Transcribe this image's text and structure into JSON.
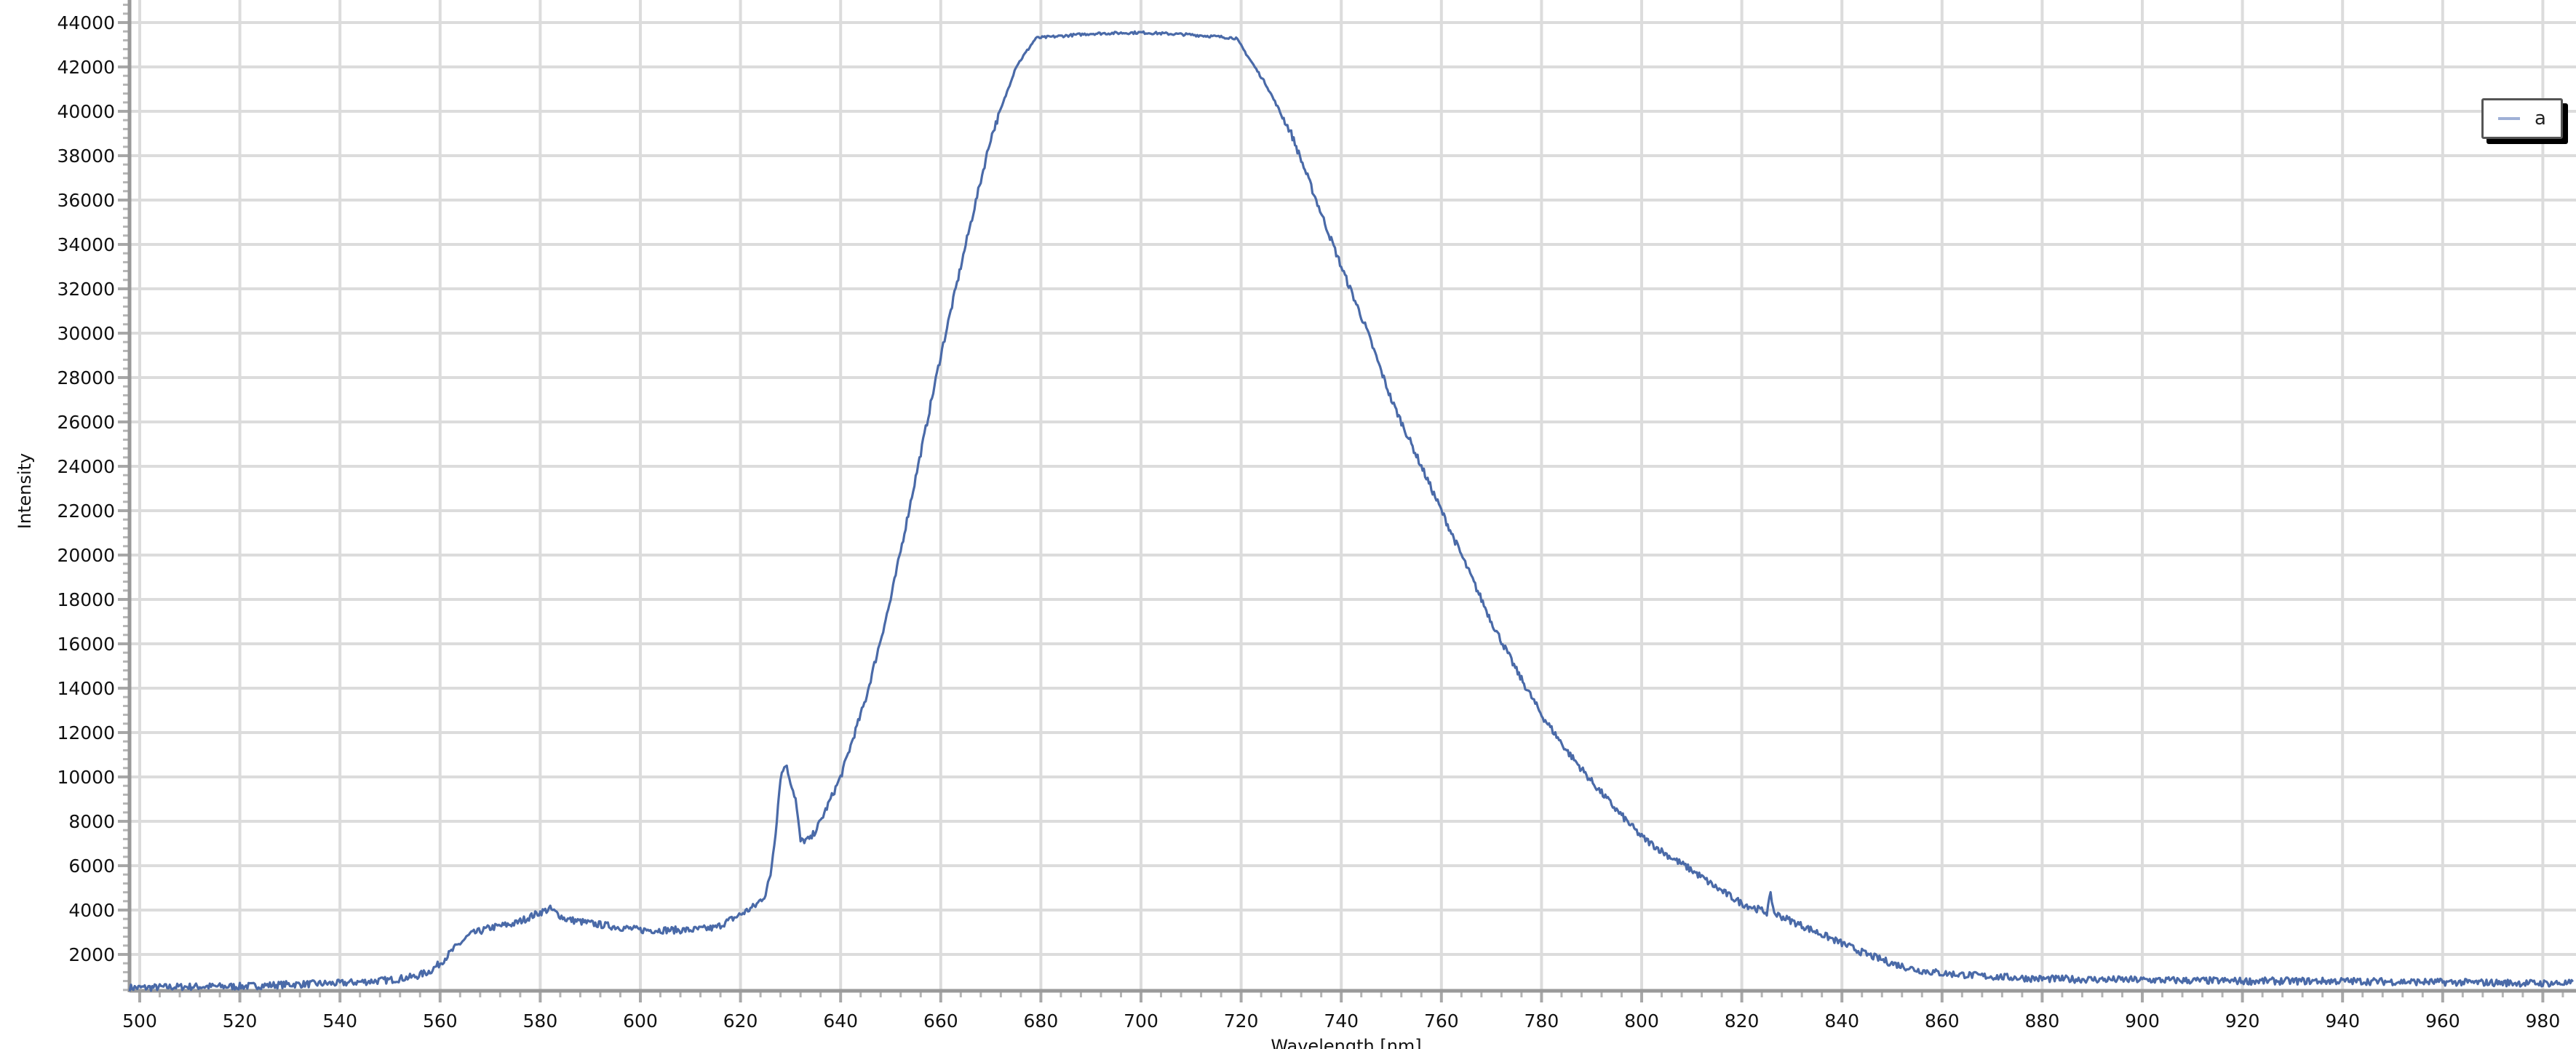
{
  "chart_data": {
    "type": "line",
    "title": "",
    "xlabel": "Wavelength [nm]",
    "ylabel": "Intensity",
    "xlim": [
      498,
      986
    ],
    "ylim": [
      350,
      45000
    ],
    "x_ticks": [
      500,
      520,
      540,
      560,
      580,
      600,
      620,
      640,
      660,
      680,
      700,
      720,
      740,
      760,
      780,
      800,
      820,
      840,
      860,
      880,
      900,
      920,
      940,
      960,
      980
    ],
    "y_ticks": [
      2000,
      4000,
      6000,
      8000,
      10000,
      12000,
      14000,
      16000,
      18000,
      20000,
      22000,
      24000,
      26000,
      28000,
      30000,
      32000,
      34000,
      36000,
      38000,
      40000,
      42000,
      44000
    ],
    "grid": true,
    "legend_position": "top-right",
    "series": [
      {
        "name": "a",
        "color": "#4a6aa8",
        "points": [
          [
            498,
            500
          ],
          [
            500,
            500
          ],
          [
            510,
            550
          ],
          [
            520,
            560
          ],
          [
            530,
            650
          ],
          [
            540,
            700
          ],
          [
            550,
            850
          ],
          [
            555,
            1000
          ],
          [
            558,
            1250
          ],
          [
            560,
            1600
          ],
          [
            563,
            2300
          ],
          [
            566,
            2900
          ],
          [
            570,
            3200
          ],
          [
            575,
            3400
          ],
          [
            580,
            3900
          ],
          [
            582,
            4050
          ],
          [
            585,
            3600
          ],
          [
            590,
            3400
          ],
          [
            600,
            3100
          ],
          [
            610,
            3100
          ],
          [
            615,
            3200
          ],
          [
            620,
            3800
          ],
          [
            623,
            4200
          ],
          [
            625,
            4700
          ],
          [
            626,
            5600
          ],
          [
            627,
            7500
          ],
          [
            628,
            10000
          ],
          [
            629,
            10600
          ],
          [
            630,
            9800
          ],
          [
            631,
            9000
          ],
          [
            632,
            7100
          ],
          [
            634,
            7200
          ],
          [
            636,
            8000
          ],
          [
            640,
            10000
          ],
          [
            645,
            13500
          ],
          [
            650,
            18000
          ],
          [
            655,
            23500
          ],
          [
            660,
            29000
          ],
          [
            665,
            34000
          ],
          [
            670,
            38800
          ],
          [
            675,
            42000
          ],
          [
            679,
            43300
          ],
          [
            690,
            43500
          ],
          [
            700,
            43550
          ],
          [
            710,
            43450
          ],
          [
            719,
            43300
          ],
          [
            725,
            41200
          ],
          [
            730,
            39000
          ],
          [
            735,
            36000
          ],
          [
            740,
            33000
          ],
          [
            745,
            30200
          ],
          [
            750,
            27000
          ],
          [
            755,
            24500
          ],
          [
            760,
            22000
          ],
          [
            765,
            19500
          ],
          [
            770,
            17000
          ],
          [
            775,
            14800
          ],
          [
            780,
            12800
          ],
          [
            785,
            11200
          ],
          [
            790,
            9800
          ],
          [
            795,
            8500
          ],
          [
            800,
            7300
          ],
          [
            805,
            6500
          ],
          [
            810,
            5800
          ],
          [
            815,
            5000
          ],
          [
            820,
            4300
          ],
          [
            825,
            3900
          ],
          [
            825.8,
            4700
          ],
          [
            826.5,
            3850
          ],
          [
            830,
            3500
          ],
          [
            835,
            3000
          ],
          [
            840,
            2500
          ],
          [
            845,
            2000
          ],
          [
            850,
            1600
          ],
          [
            855,
            1300
          ],
          [
            860,
            1150
          ],
          [
            870,
            1000
          ],
          [
            880,
            900
          ],
          [
            900,
            850
          ],
          [
            920,
            800
          ],
          [
            940,
            800
          ],
          [
            960,
            750
          ],
          [
            980,
            700
          ],
          [
            986,
            700
          ]
        ]
      }
    ]
  }
}
